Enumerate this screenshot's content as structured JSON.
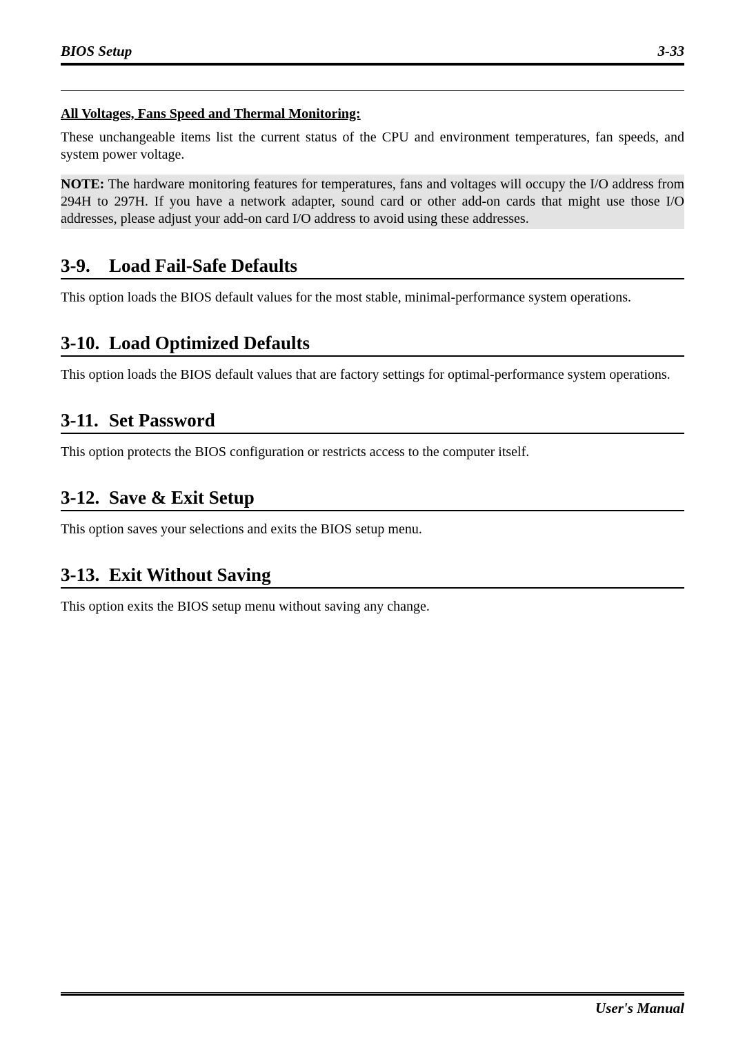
{
  "header": {
    "left": "BIOS Setup",
    "right": "3-33"
  },
  "intro": {
    "subsection_title": "All Voltages, Fans Speed and Thermal Monitoring:",
    "paragraph": "These unchangeable items list the current status of the CPU and environment temperatures, fan speeds, and system power voltage.",
    "note_label": "NOTE:",
    "note_body": " The hardware monitoring features for temperatures, fans and voltages will occupy the I/O address from 294H to 297H. If you have a network adapter, sound card or other add-on cards that might use those I/O addresses, please adjust your add-on card I/O address to avoid using these addresses."
  },
  "sections": [
    {
      "num": "3-9.",
      "title": "Load Fail-Safe Defaults",
      "body": "This option loads the BIOS default values for the most stable, minimal-performance system operations."
    },
    {
      "num": "3-10.",
      "title": "Load Optimized Defaults",
      "body": "This option loads the BIOS default values that are factory settings for optimal-performance system operations."
    },
    {
      "num": "3-11.",
      "title": "Set Password",
      "body": "This option protects the BIOS configuration or restricts access to the computer itself."
    },
    {
      "num": "3-12.",
      "title": "Save & Exit Setup",
      "body": "This option saves your selections and exits the BIOS setup menu."
    },
    {
      "num": "3-13.",
      "title": "Exit Without Saving",
      "body": "This option exits the BIOS setup menu without saving any change."
    }
  ],
  "footer": {
    "text": "User's Manual"
  }
}
